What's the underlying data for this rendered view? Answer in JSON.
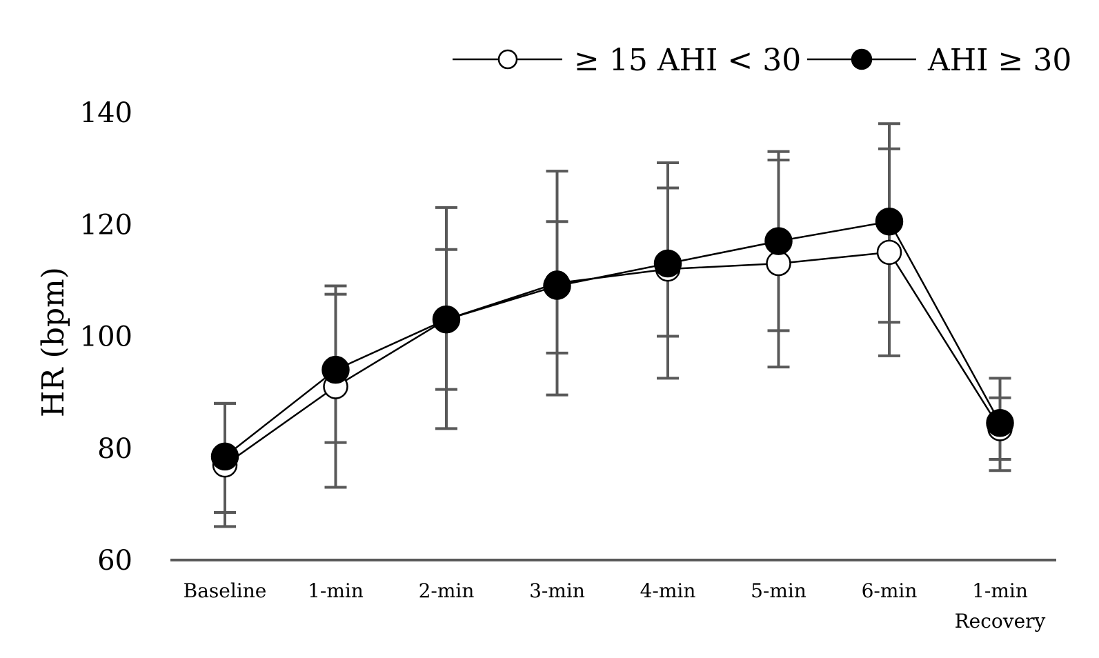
{
  "chart_data": {
    "type": "line",
    "title": "",
    "xlabel": "",
    "ylabel": "HR (bpm)",
    "ylim": [
      60,
      140
    ],
    "yticks": [
      60,
      80,
      100,
      120,
      140
    ],
    "categories": [
      [
        "Baseline"
      ],
      [
        "1-min"
      ],
      [
        "2-min"
      ],
      [
        "3-min"
      ],
      [
        "4-min"
      ],
      [
        "5-min"
      ],
      [
        "6-min"
      ],
      [
        "1-min",
        "Recovery"
      ]
    ],
    "grid": false,
    "legend_position": "top-right",
    "series": [
      {
        "name": "≥ 15 AHI < 30",
        "marker": "open-circle",
        "values": [
          77,
          91,
          103,
          109.5,
          112,
          113,
          115,
          83.5
        ],
        "error_low": [
          66,
          73,
          83.5,
          89.5,
          92.5,
          94.5,
          96.5,
          76
        ],
        "error_high": [
          88,
          107.5,
          123,
          129.5,
          131,
          133,
          133.5,
          92.5
        ]
      },
      {
        "name": "AHI ≥ 30",
        "marker": "filled-circle",
        "values": [
          78.5,
          94,
          103,
          109,
          113,
          117,
          120.5,
          84.5
        ],
        "error_low": [
          68.5,
          81,
          90.5,
          97,
          100,
          101,
          102.5,
          78
        ],
        "error_high": [
          88,
          109,
          115.5,
          120.5,
          126.5,
          131.5,
          138,
          89
        ]
      }
    ],
    "colors": {
      "error_bar": "#595959",
      "line": "#000000",
      "axis": "#595959"
    }
  }
}
